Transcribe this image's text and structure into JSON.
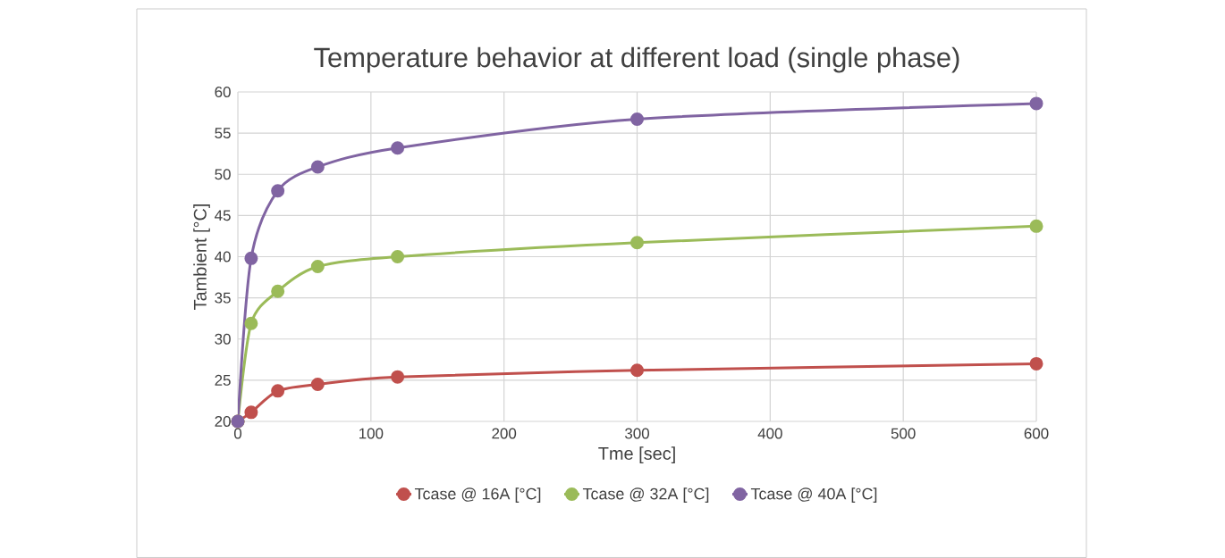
{
  "chart_data": {
    "type": "line",
    "title": "Temperature behavior at different load (single phase)",
    "xlabel": "Tme [sec]",
    "ylabel": "Tambient [°C]",
    "x": [
      0,
      10,
      30,
      60,
      120,
      300,
      600
    ],
    "series": [
      {
        "name": "Tcase @ 16A [°C]",
        "color": "#c0504d",
        "values": [
          20,
          21.1,
          23.7,
          24.5,
          25.4,
          26.2,
          27.0
        ]
      },
      {
        "name": "Tcase @ 32A [°C]",
        "color": "#9bbb59",
        "values": [
          20,
          31.9,
          35.8,
          38.8,
          40.0,
          41.7,
          43.7
        ]
      },
      {
        "name": "Tcase @ 40A [°C]",
        "color": "#8064a2",
        "values": [
          20,
          39.8,
          48.0,
          50.9,
          53.2,
          56.7,
          58.6
        ]
      }
    ],
    "xlim": [
      0,
      600
    ],
    "xticks": [
      0,
      100,
      200,
      300,
      400,
      500,
      600
    ],
    "ylim": [
      20,
      60
    ],
    "yticks": [
      20,
      25,
      30,
      35,
      40,
      45,
      50,
      55,
      60
    ],
    "grid": true,
    "legend": "bottom",
    "marker": "circle",
    "line_style": "solid"
  }
}
